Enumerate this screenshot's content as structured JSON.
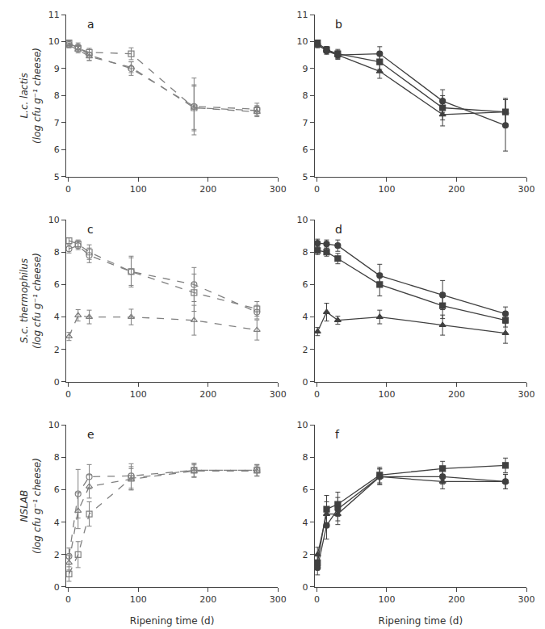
{
  "chart_data": [
    {
      "type": "line",
      "title": "a",
      "ylabel": "L.c. lactis\n(log cfu g⁻¹ cheese)",
      "x": [
        1,
        14,
        30,
        90,
        180,
        270
      ],
      "xlim": [
        -3,
        300
      ],
      "xticks": [
        0,
        100,
        200,
        300
      ],
      "ylim": [
        5,
        11
      ],
      "yticks": [
        5,
        6,
        7,
        8,
        9,
        10,
        11
      ],
      "grid": false,
      "series": [
        {
          "values": [
            9.95,
            9.75,
            9.6,
            9.55,
            7.55,
            7.45
          ],
          "errors": [
            0.08,
            0.12,
            0.15,
            0.22,
            0.85,
            0.18
          ],
          "marker": "square-open",
          "line_style": "dashed",
          "color": "#808080"
        },
        {
          "values": [
            9.9,
            9.8,
            9.5,
            9.0,
            7.6,
            7.5
          ],
          "errors": [
            0.12,
            0.15,
            0.2,
            0.25,
            1.05,
            0.22
          ],
          "marker": "circle-open",
          "line_style": "dashed",
          "color": "#808080"
        },
        {
          "values": [
            9.85,
            9.7,
            9.45,
            9.05,
            7.55,
            7.4
          ],
          "errors": [
            0.08,
            0.12,
            0.15,
            0.2,
            0.8,
            0.18
          ],
          "marker": "triangle-up-open",
          "line_style": "dashed",
          "color": "#808080"
        }
      ]
    },
    {
      "type": "line",
      "title": "b",
      "x": [
        1,
        14,
        30,
        90,
        180,
        270
      ],
      "xlim": [
        -3,
        300
      ],
      "xticks": [
        0,
        100,
        200,
        300
      ],
      "ylim": [
        5,
        11
      ],
      "yticks": [
        5,
        6,
        7,
        8,
        9,
        10,
        11
      ],
      "grid": false,
      "series": [
        {
          "values": [
            9.95,
            9.7,
            9.55,
            9.25,
            7.55,
            7.4
          ],
          "errors": [
            0.08,
            0.12,
            0.16,
            0.28,
            0.45,
            0.5
          ],
          "marker": "square",
          "line_style": "solid",
          "color": "#404040"
        },
        {
          "values": [
            9.9,
            9.65,
            9.5,
            9.55,
            7.8,
            6.9
          ],
          "errors": [
            0.08,
            0.12,
            0.16,
            0.26,
            0.42,
            0.95
          ],
          "marker": "circle",
          "line_style": "solid",
          "color": "#404040"
        },
        {
          "values": [
            9.85,
            9.7,
            9.5,
            8.9,
            7.3,
            7.4
          ],
          "errors": [
            0.08,
            0.1,
            0.12,
            0.26,
            0.42,
            0.45
          ],
          "marker": "triangle-up",
          "line_style": "solid",
          "color": "#404040"
        }
      ]
    },
    {
      "type": "line",
      "title": "c",
      "ylabel": "S.c. thermophilus\n(log cfu g⁻¹ cheese)",
      "x": [
        1,
        14,
        30,
        90,
        180,
        270
      ],
      "xlim": [
        -3,
        300
      ],
      "xticks": [
        0,
        100,
        200,
        300
      ],
      "ylim": [
        0,
        10
      ],
      "yticks": [
        0,
        2,
        4,
        6,
        8,
        10
      ],
      "grid": false,
      "series": [
        {
          "values": [
            8.7,
            8.5,
            8.0,
            6.8,
            5.5,
            4.5
          ],
          "errors": [
            0.18,
            0.25,
            0.45,
            0.95,
            1.15,
            0.45
          ],
          "marker": "square-open",
          "line_style": "dashed",
          "color": "#808080"
        },
        {
          "values": [
            8.2,
            8.4,
            7.8,
            6.8,
            6.0,
            4.3
          ],
          "errors": [
            0.25,
            0.25,
            0.45,
            0.85,
            1.05,
            0.42
          ],
          "marker": "circle-open",
          "line_style": "dashed",
          "color": "#808080"
        },
        {
          "values": [
            2.8,
            4.1,
            4.0,
            4.0,
            3.8,
            3.2
          ],
          "errors": [
            0.25,
            0.35,
            0.42,
            0.48,
            0.92,
            0.62
          ],
          "marker": "triangle-up-open",
          "line_style": "dashed",
          "color": "#808080"
        }
      ]
    },
    {
      "type": "line",
      "title": "d",
      "x": [
        1,
        14,
        30,
        90,
        180,
        270
      ],
      "xlim": [
        -3,
        300
      ],
      "xticks": [
        0,
        100,
        200,
        300
      ],
      "ylim": [
        0,
        10
      ],
      "yticks": [
        0,
        2,
        4,
        6,
        8,
        10
      ],
      "grid": false,
      "series": [
        {
          "values": [
            8.1,
            8.0,
            7.6,
            6.0,
            4.7,
            3.8
          ],
          "errors": [
            0.25,
            0.25,
            0.32,
            0.7,
            0.8,
            0.42
          ],
          "marker": "square",
          "line_style": "solid",
          "color": "#404040"
        },
        {
          "values": [
            8.55,
            8.5,
            8.4,
            6.55,
            5.35,
            4.2
          ],
          "errors": [
            0.25,
            0.25,
            0.35,
            0.7,
            0.9,
            0.42
          ],
          "marker": "circle",
          "line_style": "solid",
          "color": "#404040"
        },
        {
          "values": [
            3.1,
            4.3,
            3.8,
            4.0,
            3.5,
            3.0
          ],
          "errors": [
            0.25,
            0.55,
            0.25,
            0.42,
            0.62,
            0.62
          ],
          "marker": "triangle-up",
          "line_style": "solid",
          "color": "#404040"
        }
      ]
    },
    {
      "type": "line",
      "title": "e",
      "ylabel": "NSLAB\n(log cfu g⁻¹ cheese)",
      "xlabel": "Ripening time (d)",
      "x": [
        1,
        14,
        30,
        90,
        180,
        270
      ],
      "xlim": [
        -3,
        300
      ],
      "xticks": [
        0,
        100,
        200,
        300
      ],
      "ylim": [
        0,
        10
      ],
      "yticks": [
        0,
        2,
        4,
        6,
        8,
        10
      ],
      "grid": false,
      "series": [
        {
          "values": [
            0.8,
            2.0,
            4.5,
            6.7,
            7.2,
            7.2
          ],
          "errors": [
            0.45,
            0.8,
            0.75,
            0.72,
            0.42,
            0.35
          ],
          "marker": "square-open",
          "line_style": "dashed",
          "color": "#808080"
        },
        {
          "values": [
            1.9,
            5.75,
            6.8,
            6.85,
            7.2,
            7.2
          ],
          "errors": [
            0.5,
            1.5,
            0.75,
            0.75,
            0.42,
            0.35
          ],
          "marker": "circle-open",
          "line_style": "dashed",
          "color": "#808080"
        },
        {
          "values": [
            1.5,
            4.7,
            6.2,
            6.65,
            7.15,
            7.15
          ],
          "errors": [
            0.45,
            1.1,
            0.72,
            0.65,
            0.38,
            0.32
          ],
          "marker": "triangle-up-open",
          "line_style": "dashed",
          "color": "#808080"
        }
      ]
    },
    {
      "type": "line",
      "title": "f",
      "xlabel": "Ripening time (d)",
      "x": [
        1,
        14,
        30,
        90,
        180,
        270
      ],
      "xlim": [
        -3,
        300
      ],
      "xticks": [
        0,
        100,
        200,
        300
      ],
      "ylim": [
        0,
        10
      ],
      "yticks": [
        0,
        2,
        4,
        6,
        8,
        10
      ],
      "grid": false,
      "series": [
        {
          "values": [
            1.5,
            4.8,
            5.1,
            6.9,
            7.3,
            7.5
          ],
          "errors": [
            0.45,
            0.85,
            0.75,
            0.48,
            0.45,
            0.45
          ],
          "marker": "square",
          "line_style": "solid",
          "color": "#404040"
        },
        {
          "values": [
            1.2,
            3.8,
            4.8,
            6.8,
            6.8,
            6.5
          ],
          "errors": [
            0.45,
            0.85,
            0.72,
            0.48,
            0.45,
            0.45
          ],
          "marker": "circle",
          "line_style": "solid",
          "color": "#404040"
        },
        {
          "values": [
            2.0,
            4.5,
            4.5,
            6.8,
            6.5,
            6.5
          ],
          "errors": [
            0.45,
            0.75,
            0.65,
            0.48,
            0.45,
            0.45
          ],
          "marker": "triangle-up",
          "line_style": "solid",
          "color": "#404040"
        }
      ]
    }
  ]
}
